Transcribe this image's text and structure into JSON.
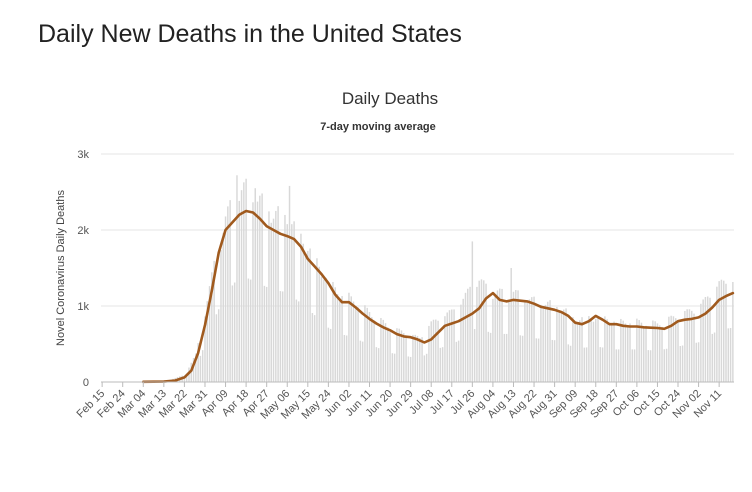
{
  "page": {
    "title": "Daily New Deaths in the United States"
  },
  "chart_data": {
    "type": "bar",
    "title": "Daily Deaths",
    "subtitle": "7-day moving average",
    "ylabel": "Novel Coronavirus Daily Deaths",
    "xlabel": "",
    "ylim": [
      0,
      3000
    ],
    "yticks": [
      0,
      1000,
      2000,
      3000
    ],
    "ytick_labels": [
      "0",
      "1k",
      "2k",
      "3k"
    ],
    "grid": true,
    "start_date": "2020-02-15",
    "xticks": [
      "Feb 15",
      "Feb 24",
      "Mar 04",
      "Mar 13",
      "Mar 22",
      "Mar 31",
      "Apr 09",
      "Apr 18",
      "Apr 27",
      "May 06",
      "May 15",
      "May 24",
      "Jun 02",
      "Jun 11",
      "Jun 20",
      "Jun 29",
      "Jul 08",
      "Jul 17",
      "Jul 26",
      "Aug 04",
      "Aug 13",
      "Aug 22",
      "Aug 31",
      "Sep 09",
      "Sep 18",
      "Sep 27",
      "Oct 06",
      "Oct 15",
      "Oct 24",
      "Nov 02",
      "Nov 11"
    ],
    "colors": {
      "bars": "#d8d8d8",
      "line": "#a05a1e",
      "grid": "#e6e6e6"
    },
    "series": [
      {
        "name": "Daily Deaths",
        "kind": "bar",
        "anchors": [
          [
            "2020-02-15",
            0
          ],
          [
            "2020-03-04",
            0
          ],
          [
            "2020-03-13",
            2
          ],
          [
            "2020-03-22",
            90
          ],
          [
            "2020-03-27",
            350
          ],
          [
            "2020-03-31",
            900
          ],
          [
            "2020-04-04",
            1500
          ],
          [
            "2020-04-09",
            2100
          ],
          [
            "2020-04-14",
            2450
          ],
          [
            "2020-04-18",
            2500
          ],
          [
            "2020-04-24",
            2350
          ],
          [
            "2020-04-30",
            2200
          ],
          [
            "2020-05-06",
            2150
          ],
          [
            "2020-05-15",
            1750
          ],
          [
            "2020-05-24",
            1300
          ],
          [
            "2020-05-29",
            1150
          ],
          [
            "2020-06-02",
            1100
          ],
          [
            "2020-06-11",
            900
          ],
          [
            "2020-06-20",
            700
          ],
          [
            "2020-06-29",
            600
          ],
          [
            "2020-07-03",
            560
          ],
          [
            "2020-07-08",
            750
          ],
          [
            "2020-07-17",
            900
          ],
          [
            "2020-07-22",
            1050
          ],
          [
            "2020-07-26",
            1250
          ],
          [
            "2020-07-29",
            1300
          ],
          [
            "2020-08-04",
            1150
          ],
          [
            "2020-08-13",
            1150
          ],
          [
            "2020-08-22",
            1050
          ],
          [
            "2020-08-31",
            1000
          ],
          [
            "2020-09-06",
            900
          ],
          [
            "2020-09-09",
            800
          ],
          [
            "2020-09-18",
            850
          ],
          [
            "2020-09-27",
            780
          ],
          [
            "2020-10-06",
            780
          ],
          [
            "2020-10-15",
            750
          ],
          [
            "2020-10-24",
            850
          ],
          [
            "2020-11-02",
            950
          ],
          [
            "2020-11-11",
            1250
          ],
          [
            "2020-11-17",
            1300
          ]
        ],
        "spikes": [
          [
            "2020-04-14",
            2720
          ],
          [
            "2020-04-22",
            2550
          ],
          [
            "2020-05-07",
            2580
          ],
          [
            "2020-07-26",
            1850
          ],
          [
            "2020-08-12",
            1500
          ]
        ],
        "weekly_low_factor": 0.55
      },
      {
        "name": "7-day moving average",
        "kind": "line",
        "points": [
          [
            "2020-03-04",
            2
          ],
          [
            "2020-03-13",
            5
          ],
          [
            "2020-03-18",
            20
          ],
          [
            "2020-03-22",
            60
          ],
          [
            "2020-03-25",
            150
          ],
          [
            "2020-03-28",
            380
          ],
          [
            "2020-03-31",
            750
          ],
          [
            "2020-04-03",
            1200
          ],
          [
            "2020-04-06",
            1700
          ],
          [
            "2020-04-09",
            2000
          ],
          [
            "2020-04-12",
            2100
          ],
          [
            "2020-04-15",
            2200
          ],
          [
            "2020-04-18",
            2250
          ],
          [
            "2020-04-21",
            2230
          ],
          [
            "2020-04-24",
            2150
          ],
          [
            "2020-04-27",
            2050
          ],
          [
            "2020-04-30",
            2000
          ],
          [
            "2020-05-03",
            1950
          ],
          [
            "2020-05-06",
            1920
          ],
          [
            "2020-05-09",
            1880
          ],
          [
            "2020-05-12",
            1780
          ],
          [
            "2020-05-15",
            1620
          ],
          [
            "2020-05-18",
            1520
          ],
          [
            "2020-05-21",
            1420
          ],
          [
            "2020-05-24",
            1300
          ],
          [
            "2020-05-27",
            1150
          ],
          [
            "2020-05-30",
            1050
          ],
          [
            "2020-06-02",
            1050
          ],
          [
            "2020-06-05",
            980
          ],
          [
            "2020-06-08",
            900
          ],
          [
            "2020-06-11",
            830
          ],
          [
            "2020-06-14",
            770
          ],
          [
            "2020-06-17",
            720
          ],
          [
            "2020-06-20",
            680
          ],
          [
            "2020-06-23",
            630
          ],
          [
            "2020-06-26",
            600
          ],
          [
            "2020-06-29",
            590
          ],
          [
            "2020-07-02",
            560
          ],
          [
            "2020-07-05",
            520
          ],
          [
            "2020-07-08",
            560
          ],
          [
            "2020-07-11",
            650
          ],
          [
            "2020-07-14",
            740
          ],
          [
            "2020-07-17",
            770
          ],
          [
            "2020-07-20",
            800
          ],
          [
            "2020-07-23",
            850
          ],
          [
            "2020-07-26",
            900
          ],
          [
            "2020-07-29",
            970
          ],
          [
            "2020-08-01",
            1100
          ],
          [
            "2020-08-04",
            1170
          ],
          [
            "2020-08-07",
            1080
          ],
          [
            "2020-08-10",
            1060
          ],
          [
            "2020-08-13",
            1080
          ],
          [
            "2020-08-16",
            1070
          ],
          [
            "2020-08-19",
            1060
          ],
          [
            "2020-08-22",
            1030
          ],
          [
            "2020-08-25",
            990
          ],
          [
            "2020-08-28",
            970
          ],
          [
            "2020-08-31",
            950
          ],
          [
            "2020-09-03",
            920
          ],
          [
            "2020-09-06",
            870
          ],
          [
            "2020-09-09",
            780
          ],
          [
            "2020-09-12",
            760
          ],
          [
            "2020-09-15",
            800
          ],
          [
            "2020-09-18",
            870
          ],
          [
            "2020-09-21",
            820
          ],
          [
            "2020-09-24",
            760
          ],
          [
            "2020-09-27",
            760
          ],
          [
            "2020-09-30",
            740
          ],
          [
            "2020-10-03",
            730
          ],
          [
            "2020-10-06",
            730
          ],
          [
            "2020-10-09",
            720
          ],
          [
            "2020-10-12",
            715
          ],
          [
            "2020-10-15",
            710
          ],
          [
            "2020-10-18",
            700
          ],
          [
            "2020-10-21",
            740
          ],
          [
            "2020-10-24",
            800
          ],
          [
            "2020-10-27",
            820
          ],
          [
            "2020-10-30",
            830
          ],
          [
            "2020-11-02",
            850
          ],
          [
            "2020-11-05",
            900
          ],
          [
            "2020-11-08",
            980
          ],
          [
            "2020-11-11",
            1080
          ],
          [
            "2020-11-14",
            1130
          ],
          [
            "2020-11-17",
            1170
          ]
        ]
      }
    ]
  }
}
